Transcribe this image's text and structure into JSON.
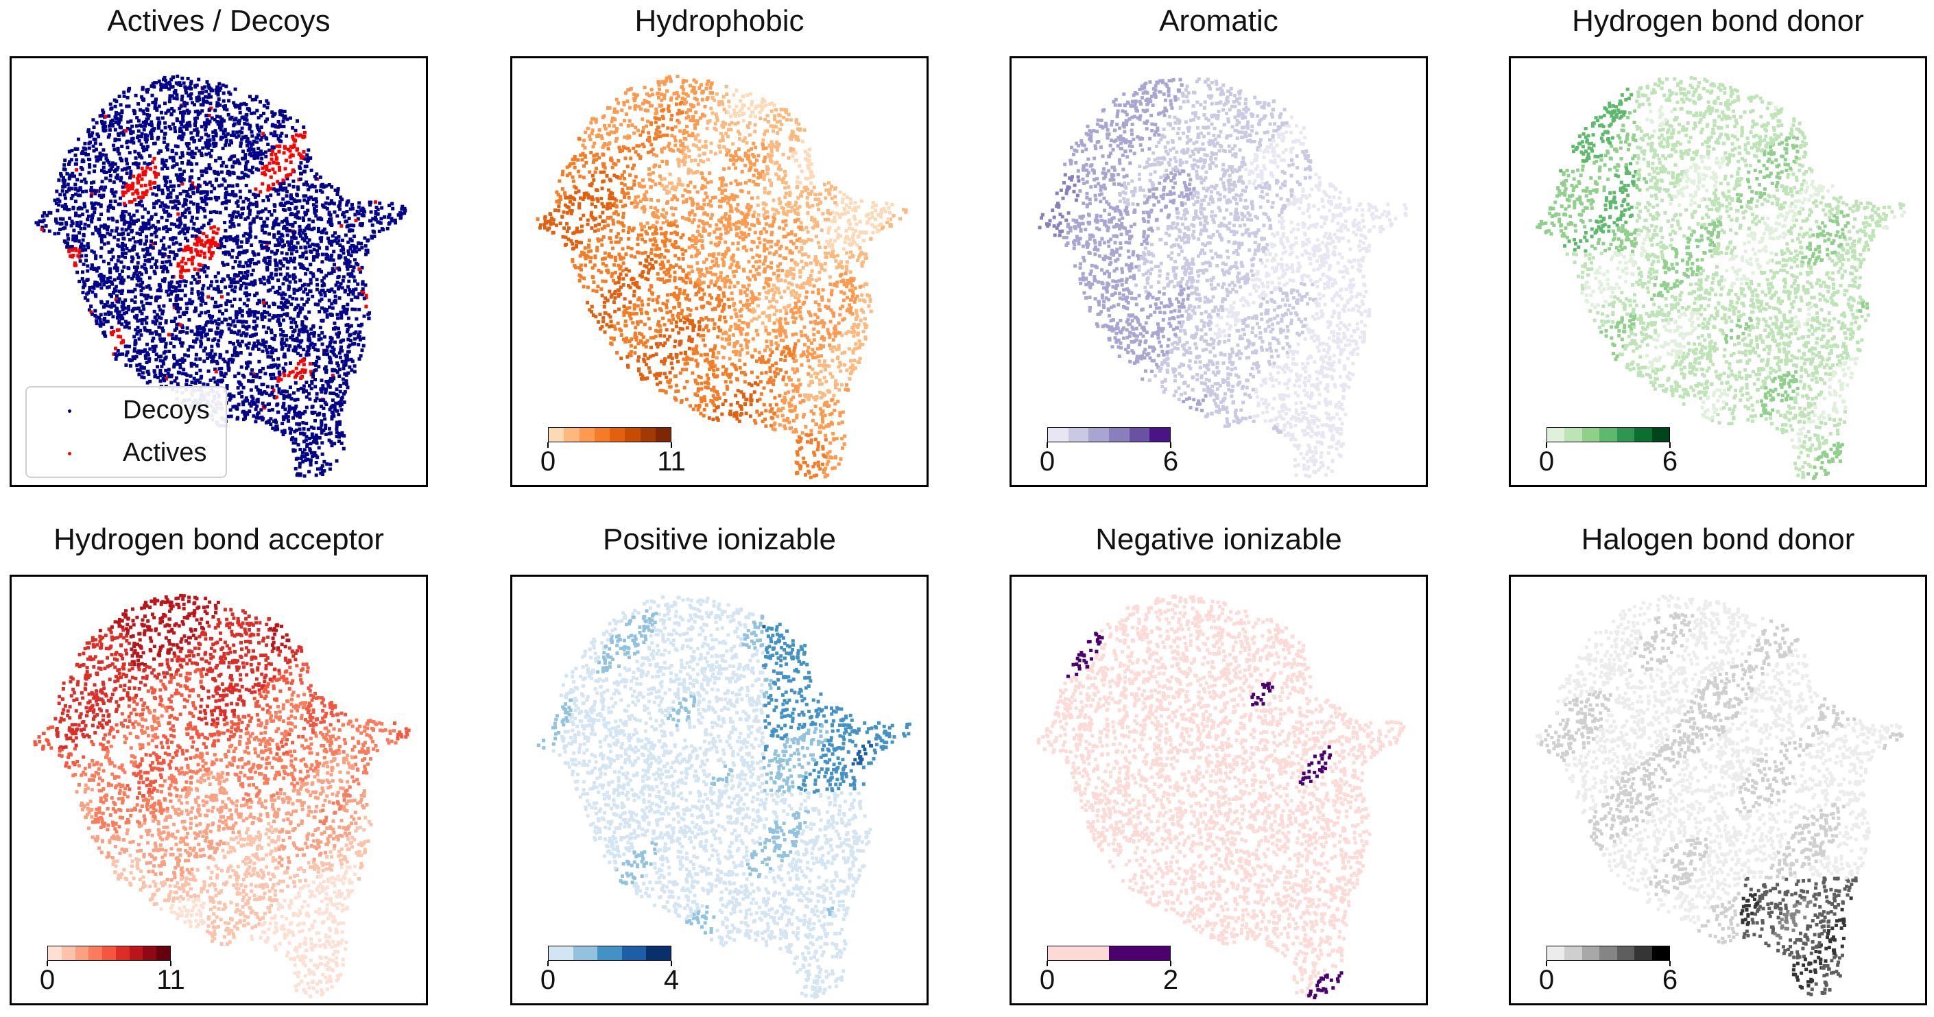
{
  "chart_data": [
    {
      "type": "scatter",
      "title": "Actives / Decoys",
      "legend_position": "lower-left",
      "series": [
        {
          "name": "Decoys",
          "color": "#00008b"
        },
        {
          "name": "Actives",
          "color": "#ff0000"
        }
      ]
    },
    {
      "type": "scatter",
      "title": "Hydrophobic",
      "colormap": "Oranges",
      "colors": [
        "#fdd9b5",
        "#fdb97d",
        "#fd9a4e",
        "#f57c24",
        "#e2600e",
        "#c64b03",
        "#a33a03",
        "#7f2704"
      ],
      "vmin": 0,
      "vmax": 11,
      "cbar_ticks": [
        "0",
        "11"
      ]
    },
    {
      "type": "scatter",
      "title": "Aromatic",
      "colormap": "Purples",
      "colors": [
        "#e8e6f3",
        "#cac9e3",
        "#a9a5d2",
        "#8b7ebd",
        "#6a51a3",
        "#4a1486"
      ],
      "vmin": 0,
      "vmax": 6,
      "cbar_ticks": [
        "0",
        "6"
      ]
    },
    {
      "type": "scatter",
      "title": "Hydrogen bond donor",
      "colormap": "Greens",
      "colors": [
        "#dff1da",
        "#bce4b5",
        "#8fd08b",
        "#5db96b",
        "#2f9553",
        "#0d6e31",
        "#00441b"
      ],
      "vmin": 0,
      "vmax": 6,
      "cbar_ticks": [
        "0",
        "6"
      ]
    },
    {
      "type": "scatter",
      "title": "Hydrogen bond acceptor",
      "colormap": "Reds",
      "colors": [
        "#fee0d2",
        "#fcc2aa",
        "#fca082",
        "#fb7b5b",
        "#f4563e",
        "#dc2e27",
        "#bb1419",
        "#8f0912",
        "#67000d"
      ],
      "vmin": 0,
      "vmax": 11,
      "cbar_ticks": [
        "0",
        "11"
      ]
    },
    {
      "type": "scatter",
      "title": "Positive ionizable",
      "colormap": "Blues",
      "colors": [
        "#d3e4f3",
        "#92c3de",
        "#4292c6",
        "#1c5fa6",
        "#08306b"
      ],
      "vmin": 0,
      "vmax": 4,
      "cbar_ticks": [
        "0",
        "4"
      ]
    },
    {
      "type": "scatter",
      "title": "Negative ionizable",
      "colormap": "custom",
      "colors": [
        "#fddad5",
        "#4b006e"
      ],
      "vmin": 0,
      "vmax": 2,
      "cbar_ticks": [
        "0",
        "2"
      ]
    },
    {
      "type": "scatter",
      "title": "Halogen bond donor",
      "colormap": "Greys",
      "colors": [
        "#ececec",
        "#cfcfcf",
        "#a8a8a8",
        "#858585",
        "#5e5e5e",
        "#353535",
        "#000000"
      ],
      "vmin": 0,
      "vmax": 6,
      "cbar_ticks": [
        "0",
        "6"
      ]
    }
  ]
}
